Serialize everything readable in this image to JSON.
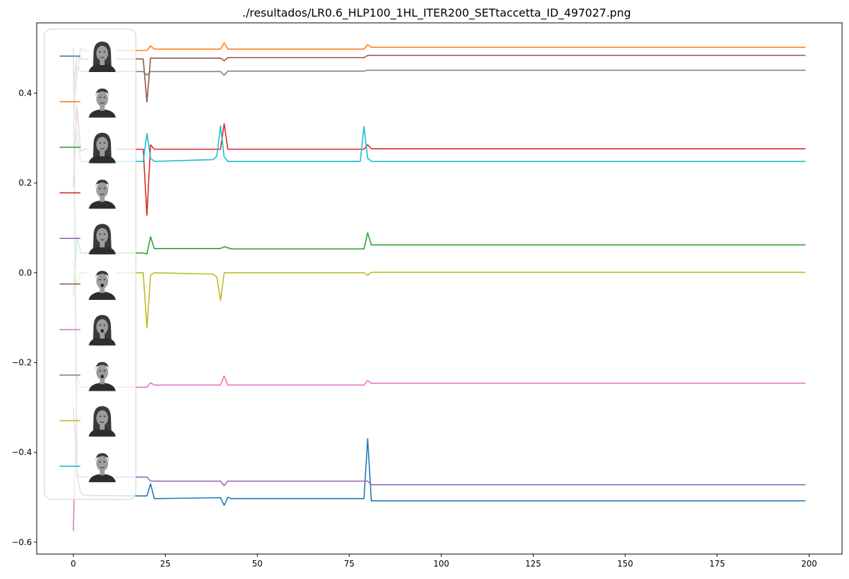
{
  "chart_data": {
    "type": "line",
    "title": "./resultados/LR0.6_HLP100_1HL_ITER200_SETtaccetta_ID_497027.png",
    "xlabel": "",
    "ylabel": "",
    "xlim": [
      -9.95,
      208.95
    ],
    "ylim": [
      -0.6265,
      0.5565
    ],
    "x_ticks": [
      0,
      25,
      50,
      75,
      100,
      125,
      150,
      175,
      200
    ],
    "y_ticks": [
      -0.6,
      -0.4,
      -0.2,
      0.0,
      0.2,
      0.4
    ],
    "y_tick_labels": [
      "−0.6",
      "−0.4",
      "−0.2",
      "0.0",
      "0.2",
      "0.4"
    ],
    "grid": false,
    "legend": {
      "placement": "upper-left",
      "entries": [
        {
          "color": "#1f77b4",
          "face": "female-neutral-face-icon"
        },
        {
          "color": "#ff7f0e",
          "face": "male-neutral-face-icon"
        },
        {
          "color": "#2ca02c",
          "face": "female-smiling-face-icon"
        },
        {
          "color": "#d62728",
          "face": "male-smiling-face-icon"
        },
        {
          "color": "#9467bd",
          "face": "female-angry-face-icon"
        },
        {
          "color": "#8c564b",
          "face": "male-shouting-face-icon"
        },
        {
          "color": "#e377c2",
          "face": "female-surprised-face-icon"
        },
        {
          "color": "#7f7f7f",
          "face": "male-surprised-face-icon"
        },
        {
          "color": "#bcbd22",
          "face": "female-sad-face-icon"
        },
        {
          "color": "#17becf",
          "face": "male-serious-face-icon"
        }
      ]
    },
    "series": [
      {
        "color": "#1f77b4",
        "points": [
          [
            0,
            0.5
          ],
          [
            1,
            -0.45
          ],
          [
            2,
            -0.49
          ],
          [
            3,
            -0.496
          ],
          [
            18,
            -0.497
          ],
          [
            20,
            -0.497
          ],
          [
            21,
            -0.47
          ],
          [
            22,
            -0.503
          ],
          [
            40,
            -0.501
          ],
          [
            41,
            -0.518
          ],
          [
            42,
            -0.5
          ],
          [
            43,
            -0.503
          ],
          [
            79,
            -0.503
          ],
          [
            80,
            -0.37
          ],
          [
            81,
            -0.508
          ],
          [
            199,
            -0.508
          ]
        ]
      },
      {
        "color": "#ff7f0e",
        "points": [
          [
            0,
            0.33
          ],
          [
            1,
            0.44
          ],
          [
            2,
            0.5
          ],
          [
            3,
            0.495
          ],
          [
            20,
            0.495
          ],
          [
            21,
            0.505
          ],
          [
            22,
            0.498
          ],
          [
            40,
            0.498
          ],
          [
            41,
            0.512
          ],
          [
            42,
            0.498
          ],
          [
            79,
            0.498
          ],
          [
            80,
            0.508
          ],
          [
            81,
            0.502
          ],
          [
            199,
            0.502
          ]
        ]
      },
      {
        "color": "#2ca02c",
        "points": [
          [
            0,
            -0.05
          ],
          [
            1,
            0.08
          ],
          [
            2,
            0.044
          ],
          [
            19,
            0.044
          ],
          [
            20,
            0.042
          ],
          [
            21,
            0.08
          ],
          [
            22,
            0.054
          ],
          [
            40,
            0.054
          ],
          [
            41,
            0.058
          ],
          [
            43,
            0.053
          ],
          [
            79,
            0.053
          ],
          [
            80,
            0.089
          ],
          [
            81,
            0.062
          ],
          [
            199,
            0.062
          ]
        ]
      },
      {
        "color": "#d62728",
        "points": [
          [
            0,
            0.19
          ],
          [
            1,
            0.37
          ],
          [
            2,
            0.27
          ],
          [
            3,
            0.275
          ],
          [
            19,
            0.275
          ],
          [
            20,
            0.128
          ],
          [
            21,
            0.285
          ],
          [
            22,
            0.275
          ],
          [
            40,
            0.275
          ],
          [
            41,
            0.332
          ],
          [
            42,
            0.275
          ],
          [
            79,
            0.275
          ],
          [
            80,
            0.285
          ],
          [
            81,
            0.276
          ],
          [
            199,
            0.276
          ]
        ]
      },
      {
        "color": "#9467bd",
        "points": [
          [
            0,
            -0.3
          ],
          [
            1,
            -0.45
          ],
          [
            2,
            -0.455
          ],
          [
            19,
            -0.455
          ],
          [
            20,
            -0.455
          ],
          [
            21,
            -0.464
          ],
          [
            40,
            -0.464
          ],
          [
            41,
            -0.474
          ],
          [
            42,
            -0.464
          ],
          [
            79,
            -0.464
          ],
          [
            80,
            -0.464
          ],
          [
            81,
            -0.472
          ],
          [
            199,
            -0.472
          ]
        ]
      },
      {
        "color": "#8c564b",
        "points": [
          [
            0,
            0.42
          ],
          [
            1,
            0.48
          ],
          [
            2,
            0.476
          ],
          [
            19,
            0.476
          ],
          [
            20,
            0.38
          ],
          [
            21,
            0.478
          ],
          [
            40,
            0.478
          ],
          [
            41,
            0.472
          ],
          [
            42,
            0.479
          ],
          [
            79,
            0.479
          ],
          [
            80,
            0.484
          ],
          [
            199,
            0.484
          ]
        ]
      },
      {
        "color": "#e377c2",
        "points": [
          [
            0,
            -0.575
          ],
          [
            1,
            -0.23
          ],
          [
            2,
            -0.255
          ],
          [
            19,
            -0.255
          ],
          [
            20,
            -0.255
          ],
          [
            21,
            -0.245
          ],
          [
            22,
            -0.25
          ],
          [
            40,
            -0.25
          ],
          [
            41,
            -0.23
          ],
          [
            42,
            -0.25
          ],
          [
            79,
            -0.25
          ],
          [
            80,
            -0.24
          ],
          [
            81,
            -0.246
          ],
          [
            199,
            -0.246
          ]
        ]
      },
      {
        "color": "#7f7f7f",
        "points": [
          [
            0,
            0.38
          ],
          [
            1,
            0.46
          ],
          [
            2,
            0.448
          ],
          [
            19,
            0.448
          ],
          [
            20,
            0.44
          ],
          [
            21,
            0.448
          ],
          [
            40,
            0.448
          ],
          [
            41,
            0.44
          ],
          [
            42,
            0.449
          ],
          [
            79,
            0.449
          ],
          [
            80,
            0.451
          ],
          [
            199,
            0.451
          ]
        ]
      },
      {
        "color": "#bcbd22",
        "points": [
          [
            0,
            0.025
          ],
          [
            1,
            -0.03
          ],
          [
            2,
            0.0
          ],
          [
            19,
            0.0
          ],
          [
            20,
            -0.123
          ],
          [
            21,
            -0.005
          ],
          [
            22,
            0.0
          ],
          [
            38,
            -0.003
          ],
          [
            39,
            -0.01
          ],
          [
            40,
            -0.062
          ],
          [
            41,
            0.0
          ],
          [
            79,
            0.0
          ],
          [
            80,
            -0.006
          ],
          [
            81,
            0.001
          ],
          [
            199,
            0.001
          ]
        ]
      },
      {
        "color": "#17becf",
        "points": [
          [
            0,
            0.41
          ],
          [
            1,
            0.3
          ],
          [
            2,
            0.248
          ],
          [
            19,
            0.248
          ],
          [
            20,
            0.31
          ],
          [
            21,
            0.255
          ],
          [
            22,
            0.248
          ],
          [
            38,
            0.252
          ],
          [
            39,
            0.26
          ],
          [
            40,
            0.327
          ],
          [
            41,
            0.258
          ],
          [
            42,
            0.248
          ],
          [
            78,
            0.248
          ],
          [
            79,
            0.326
          ],
          [
            80,
            0.255
          ],
          [
            81,
            0.248
          ],
          [
            199,
            0.248
          ]
        ]
      }
    ]
  }
}
